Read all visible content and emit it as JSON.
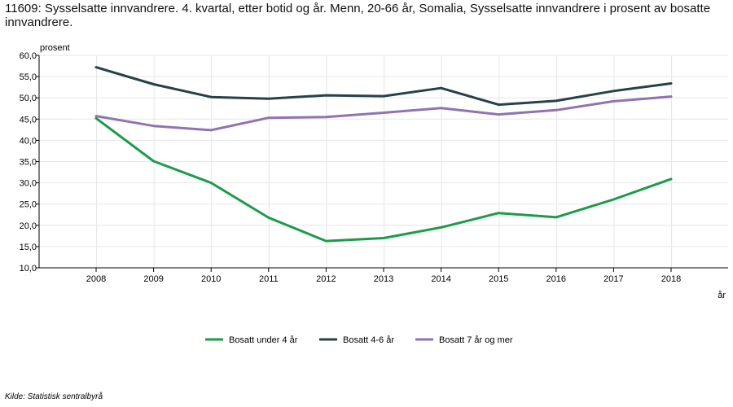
{
  "chart_data": {
    "type": "line",
    "title": "11609: Sysselsatte innvandrere. 4. kvartal, etter botid og år. Menn, 20-66 år, Somalia, Sysselsatte innvandrere i prosent av bosatte innvandrere.",
    "ylabel": "prosent",
    "xlabel": "år",
    "ylim": [
      10,
      60
    ],
    "yticks": [
      "10,0",
      "15,0",
      "20,0",
      "25,0",
      "30,0",
      "35,0",
      "40,0",
      "45,0",
      "50,0",
      "55,0",
      "60,0"
    ],
    "x": [
      "2008",
      "2009",
      "2010",
      "2011",
      "2012",
      "2013",
      "2014",
      "2015",
      "2016",
      "2017",
      "2018"
    ],
    "grid": true,
    "legend_position": "bottom",
    "series": [
      {
        "name": "Bosatt under 4 år",
        "color": "#1a9d49",
        "values": [
          45.2,
          35.1,
          30.0,
          21.8,
          16.3,
          17.0,
          19.5,
          22.9,
          21.9,
          26.1,
          30.9
        ]
      },
      {
        "name": "Bosatt 4-6 år",
        "color": "#274247",
        "values": [
          57.2,
          53.2,
          50.2,
          49.8,
          50.6,
          50.4,
          52.3,
          48.4,
          49.3,
          51.6,
          53.4
        ]
      },
      {
        "name": "Bosatt 7 år og mer",
        "color": "#9272b3",
        "values": [
          45.7,
          43.4,
          42.4,
          45.3,
          45.5,
          46.5,
          47.6,
          46.1,
          47.1,
          49.2,
          50.3
        ]
      }
    ]
  },
  "source": "Kilde:  Statistisk sentralbyrå"
}
